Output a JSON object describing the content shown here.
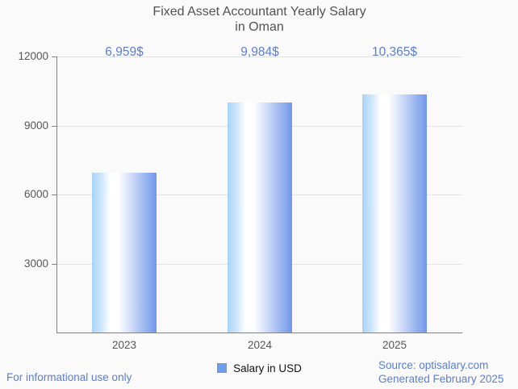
{
  "title": {
    "line1": "Fixed Asset Accountant Yearly Salary",
    "line2": "in Oman"
  },
  "chart_data": {
    "type": "bar",
    "title": "Fixed Asset Accountant Yearly Salary in Oman",
    "categories": [
      "2023",
      "2024",
      "2025"
    ],
    "values": [
      6959,
      9984,
      10365
    ],
    "value_labels": [
      "6,959$",
      "9,984$",
      "10,365$"
    ],
    "series_name": "Salary in USD",
    "xlabel": "",
    "ylabel": "",
    "ylim": [
      0,
      12000
    ],
    "yticks": [
      3000,
      6000,
      9000,
      12000
    ],
    "grid": true,
    "legend_position": "bottom"
  },
  "legend": {
    "label": "Salary in USD",
    "swatch_color": "#6d9eeb"
  },
  "footer": {
    "left": "For informational use only",
    "source_line1": "Source: optisalary.com",
    "source_line2": "Generated February 2025"
  },
  "colors": {
    "background": "#fafafa",
    "title_text": "#525252",
    "axis": "#828282",
    "gridline": "#e3e3e3",
    "axis_label": "#565656",
    "value_label": "#5b7ed4",
    "footer_text": "#5b7ed4",
    "bar_edge_left": "#a8d2f8",
    "bar_mid": "#ffffff",
    "bar_edge_right": "#7097e9"
  }
}
